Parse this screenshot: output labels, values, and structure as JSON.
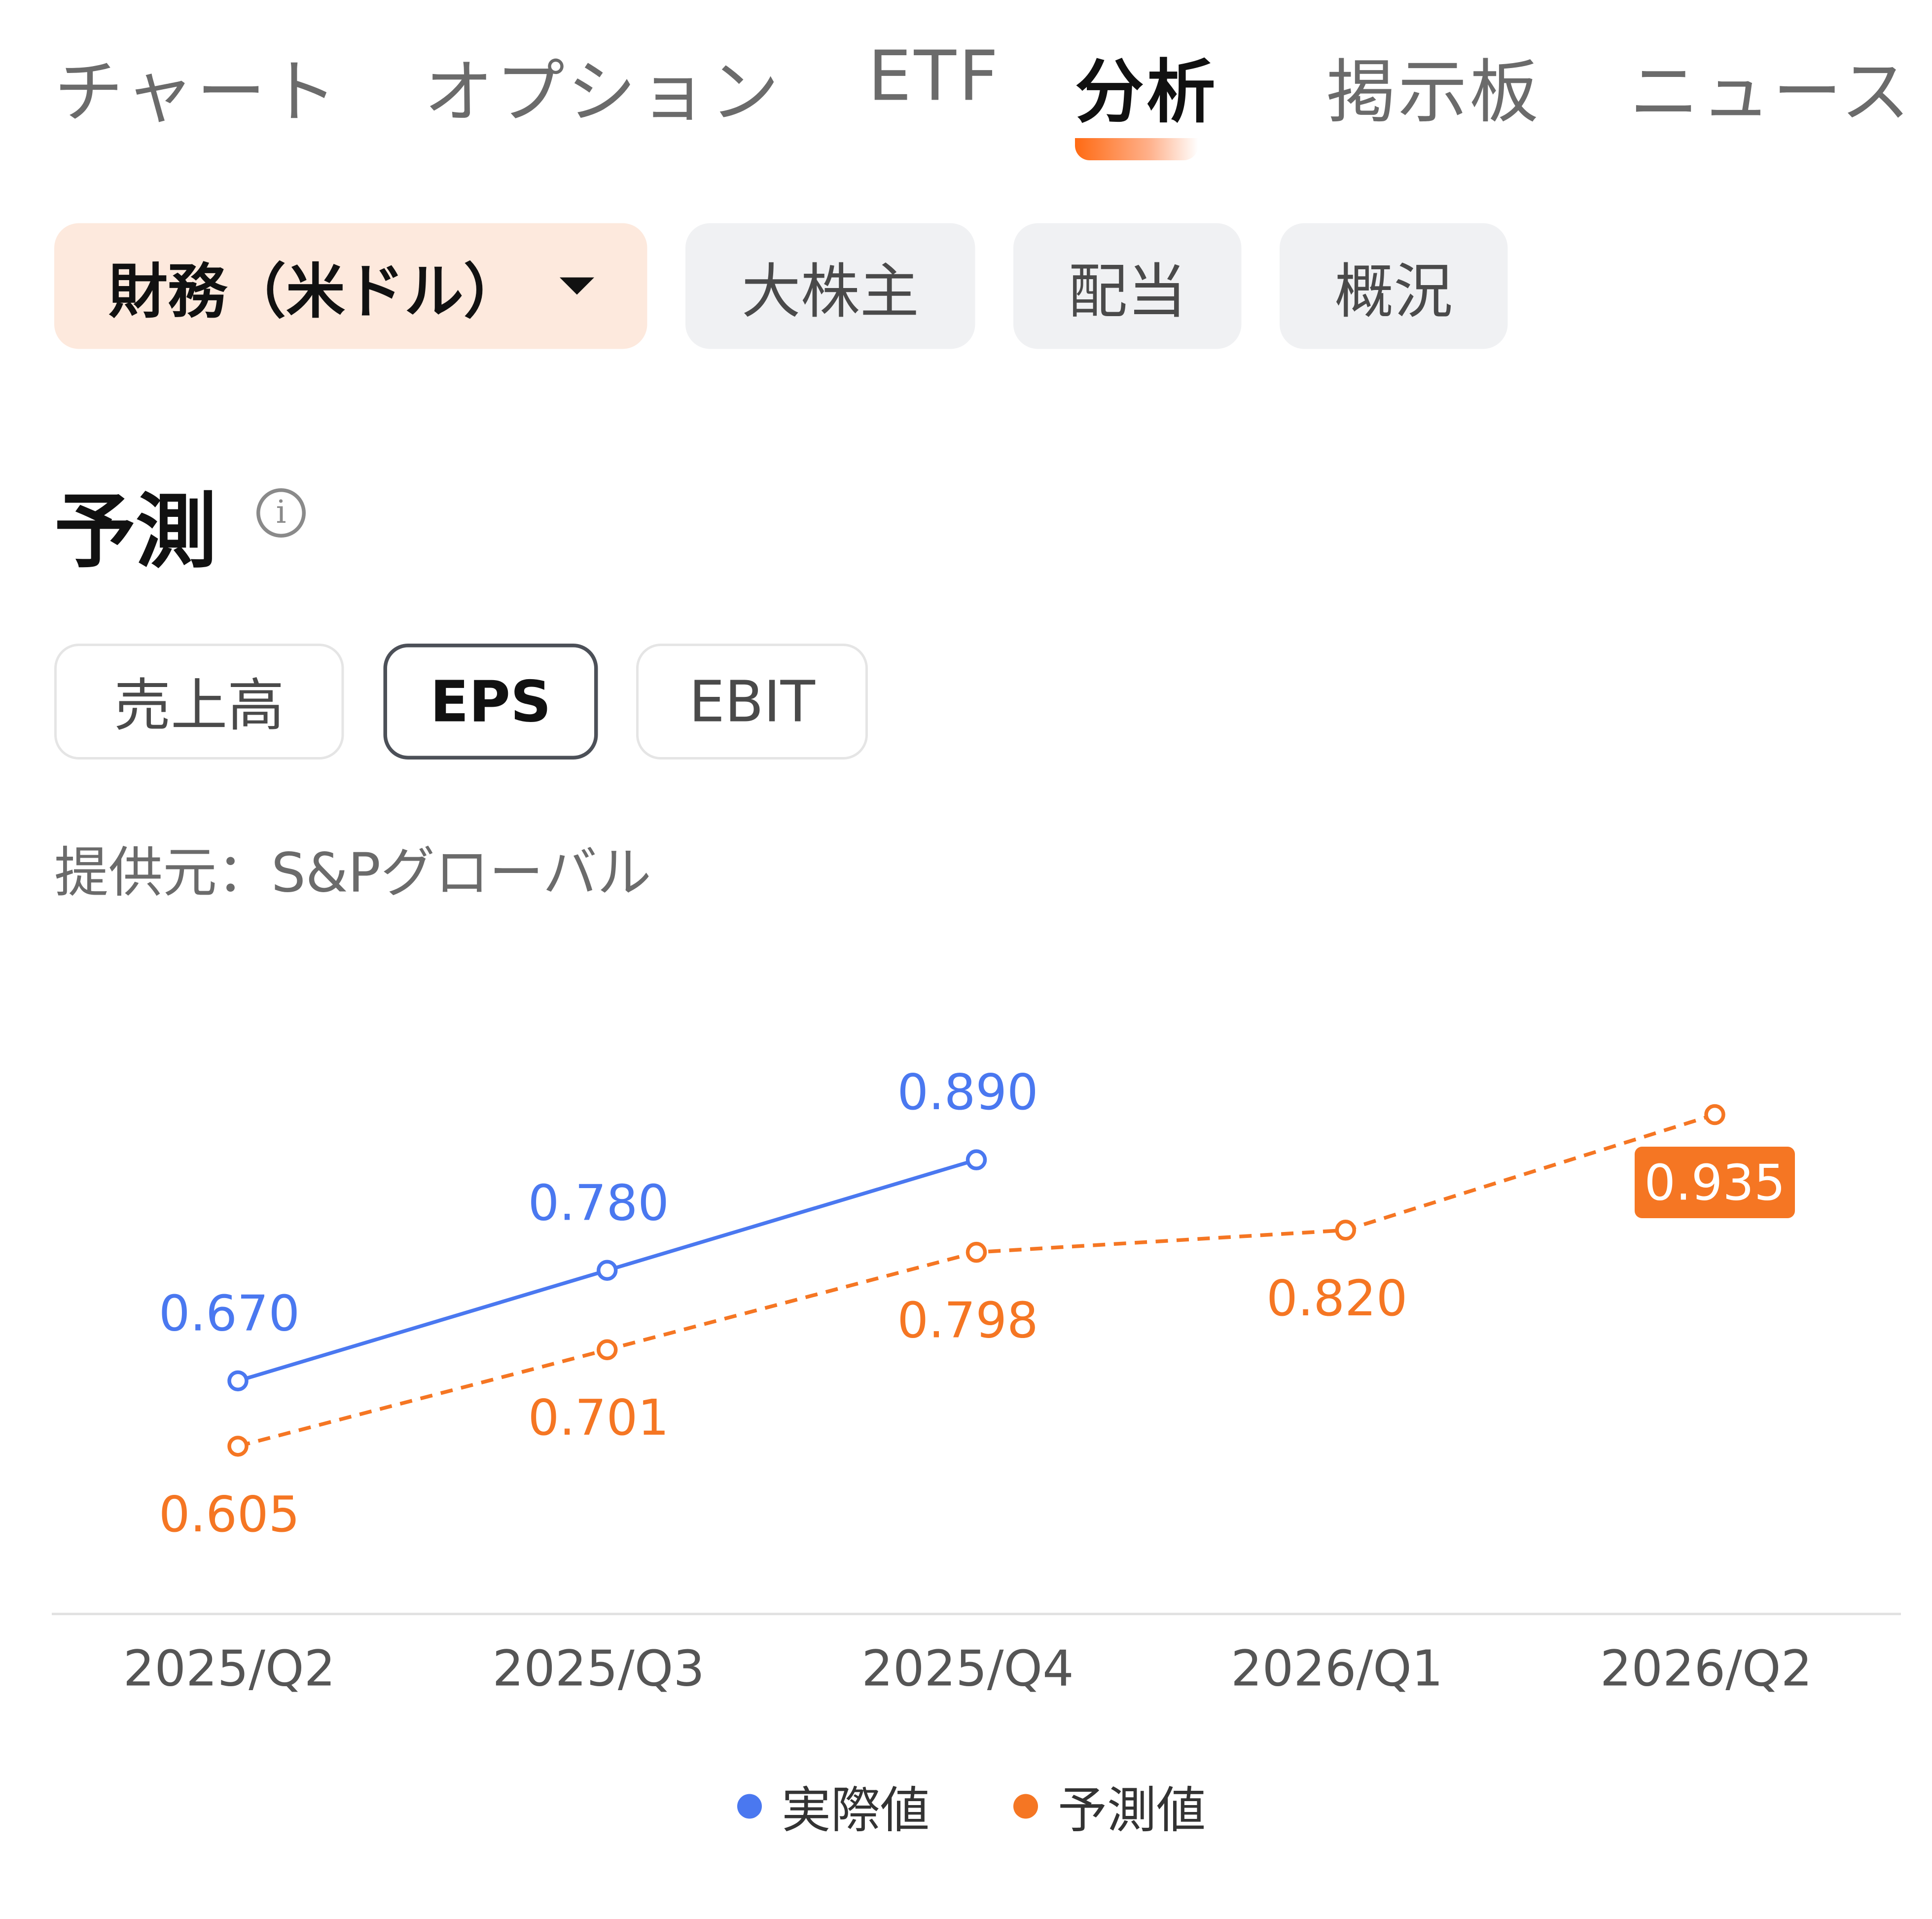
{
  "tabs": [
    {
      "label": "チャート",
      "active": false
    },
    {
      "label": "オプション",
      "active": false
    },
    {
      "label": "ETF",
      "active": false
    },
    {
      "label": "分析",
      "active": true
    },
    {
      "label": "掲示板",
      "active": false
    },
    {
      "label": "ニュース",
      "active": false
    }
  ],
  "chips": {
    "financial": "財務（米ドル）",
    "shareholders": "大株主",
    "dividend": "配当",
    "overview": "概況"
  },
  "section": {
    "title": "予測"
  },
  "metric_tabs": {
    "revenue": "売上高",
    "eps": "EPS",
    "ebit": "EBIT",
    "selected": "EPS"
  },
  "source_text": "提供元：S&Pグローバル",
  "colors": {
    "actual": "#4a78f0",
    "forecast": "#f57623",
    "accent": "#ff6a13"
  },
  "chart_data": {
    "type": "line",
    "categories": [
      "2025/Q2",
      "2025/Q3",
      "2025/Q4",
      "2026/Q1",
      "2026/Q2"
    ],
    "series": [
      {
        "name": "実際値",
        "values": [
          0.67,
          0.78,
          0.89,
          null,
          null
        ],
        "labels": [
          "0.670",
          "0.780",
          "0.890",
          "",
          ""
        ],
        "style": "solid"
      },
      {
        "name": "予測値",
        "values": [
          0.605,
          0.701,
          0.798,
          0.82,
          0.935
        ],
        "labels": [
          "0.605",
          "0.701",
          "0.798",
          "0.820",
          "0.935"
        ],
        "style": "dashed",
        "highlighted_label": "0.935"
      }
    ],
    "grid": false,
    "legend_position": "bottom-center"
  }
}
